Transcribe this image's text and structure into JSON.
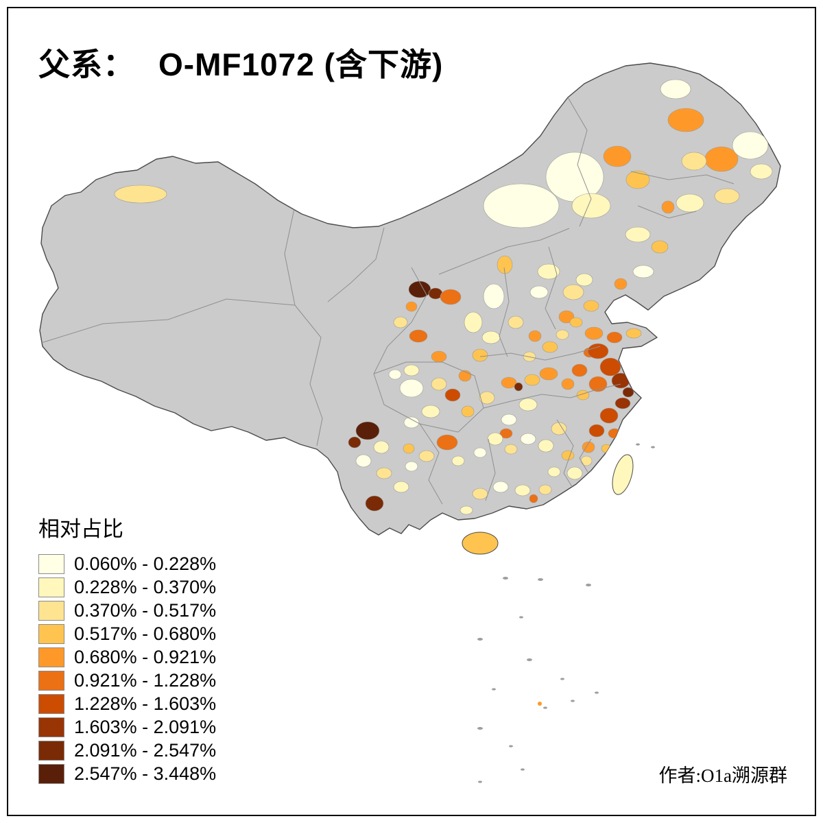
{
  "title": {
    "prefix": "父系：",
    "main": "O-MF1072 (含下游)"
  },
  "legend": {
    "title": "相对占比",
    "classes": [
      {
        "range": "0.060% - 0.228%",
        "color": "#FFFFE5"
      },
      {
        "range": "0.228% - 0.370%",
        "color": "#FFF7BC"
      },
      {
        "range": "0.370% - 0.517%",
        "color": "#FEE391"
      },
      {
        "range": "0.517% - 0.680%",
        "color": "#FEC44F"
      },
      {
        "range": "0.680% - 0.921%",
        "color": "#FE9929"
      },
      {
        "range": "0.921% - 1.228%",
        "color": "#EC7014"
      },
      {
        "range": "1.228% - 1.603%",
        "color": "#CC4C02"
      },
      {
        "range": "1.603% - 2.091%",
        "color": "#993404"
      },
      {
        "range": "2.091% - 2.547%",
        "color": "#7A2B06"
      },
      {
        "range": "2.547% - 3.448%",
        "color": "#5A1F08"
      }
    ]
  },
  "attribution": "作者:O1a溯源群",
  "map": {
    "no_data_color": "#CBCBCB",
    "outline_color": "#4A4A4A",
    "province_border_color": "#8F8F8F",
    "sea_island_color": "#9E9E9E",
    "background": "#FFFFFF",
    "frame_color": "#000000"
  }
}
